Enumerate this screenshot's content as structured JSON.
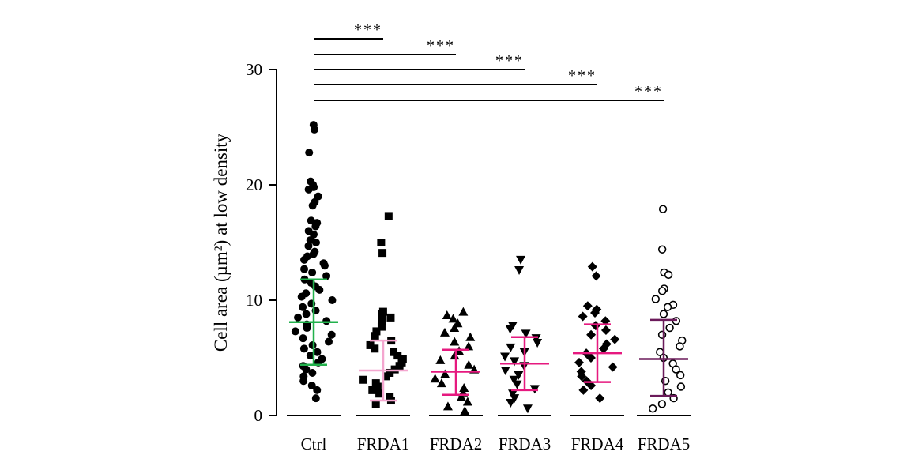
{
  "chart_data": {
    "type": "scatter",
    "title": "",
    "xlabel": "",
    "ylabel": "Cell area (µm²) at low density",
    "ylim": [
      0,
      30
    ],
    "yticks": [
      0,
      10,
      20,
      30
    ],
    "grid": false,
    "legend": "none",
    "categories": [
      "Ctrl",
      "FRDA1",
      "FRDA2",
      "FRDA3",
      "FRDA4",
      "FRDA5"
    ],
    "groups": [
      {
        "label": "Ctrl",
        "marker": "filled-circle",
        "summary_color": "#22b14c",
        "mean": 8.1,
        "sd_low": 4.4,
        "sd_high": 11.8,
        "values": [
          25.2,
          24.8,
          22.8,
          20.3,
          20.0,
          19.8,
          19.6,
          19.0,
          18.5,
          18.2,
          16.9,
          16.7,
          16.4,
          16.0,
          15.7,
          15.2,
          15.0,
          14.7,
          14.2,
          14.0,
          13.8,
          13.5,
          13.2,
          13.0,
          12.7,
          12.4,
          12.1,
          11.8,
          11.5,
          11.2,
          10.9,
          10.6,
          10.3,
          10.0,
          9.7,
          9.4,
          9.1,
          8.8,
          8.5,
          8.2,
          7.9,
          7.6,
          7.3,
          7.0,
          6.7,
          6.4,
          6.1,
          5.8,
          5.5,
          5.2,
          4.9,
          4.6,
          4.3,
          4.0,
          3.7,
          3.4,
          3.0,
          2.6,
          2.2,
          1.5
        ]
      },
      {
        "label": "FRDA1",
        "marker": "filled-square",
        "summary_color": "#f4a6cf",
        "mean": 3.9,
        "sd_low": 1.3,
        "sd_high": 6.5,
        "values": [
          17.3,
          15.0,
          14.1,
          9.0,
          8.8,
          8.5,
          8.2,
          7.7,
          7.3,
          6.9,
          6.5,
          6.1,
          5.8,
          5.5,
          5.2,
          4.9,
          4.6,
          4.3,
          4.0,
          3.7,
          3.4,
          3.1,
          2.8,
          2.5,
          2.2,
          1.9,
          1.6,
          1.3,
          1.0
        ]
      },
      {
        "label": "FRDA2",
        "marker": "filled-triangle-up",
        "summary_color": "#e6197f",
        "mean": 3.8,
        "sd_low": 1.8,
        "sd_high": 5.7,
        "values": [
          9.0,
          8.7,
          8.4,
          8.0,
          7.6,
          7.2,
          6.8,
          6.4,
          6.0,
          5.6,
          5.2,
          4.8,
          4.4,
          4.0,
          3.6,
          3.2,
          2.8,
          2.4,
          2.0,
          1.6,
          1.2,
          0.8,
          0.4
        ]
      },
      {
        "label": "FRDA3",
        "marker": "filled-triangle-down",
        "summary_color": "#e6197f",
        "mean": 4.5,
        "sd_low": 2.2,
        "sd_high": 6.8,
        "values": [
          13.5,
          12.6,
          7.8,
          7.5,
          7.1,
          6.7,
          6.3,
          5.9,
          5.5,
          5.1,
          4.7,
          4.3,
          3.9,
          3.5,
          3.1,
          2.7,
          2.3,
          1.9,
          1.5,
          1.1,
          0.6
        ]
      },
      {
        "label": "FRDA4",
        "marker": "filled-diamond",
        "summary_color": "#e6197f",
        "mean": 5.4,
        "sd_low": 2.9,
        "sd_high": 7.9,
        "values": [
          12.9,
          12.1,
          9.5,
          9.2,
          8.9,
          8.6,
          8.2,
          7.8,
          7.4,
          7.0,
          6.6,
          6.2,
          5.8,
          5.4,
          5.0,
          4.6,
          4.2,
          3.8,
          3.4,
          3.0,
          2.6,
          2.2,
          1.5
        ]
      },
      {
        "label": "FRDA5",
        "marker": "open-circle",
        "summary_color": "#6b1a5a",
        "mean": 4.9,
        "sd_low": 1.7,
        "sd_high": 8.3,
        "values": [
          17.9,
          14.4,
          12.4,
          12.2,
          11.0,
          10.8,
          10.1,
          9.6,
          9.4,
          8.8,
          8.2,
          7.6,
          7.0,
          6.5,
          6.0,
          5.5,
          5.0,
          4.5,
          4.0,
          3.5,
          3.0,
          2.5,
          2.0,
          1.5,
          1.0,
          0.6
        ]
      }
    ],
    "significance": [
      {
        "from": "Ctrl",
        "to": "FRDA1",
        "label": "***"
      },
      {
        "from": "Ctrl",
        "to": "FRDA2",
        "label": "***"
      },
      {
        "from": "Ctrl",
        "to": "FRDA3",
        "label": "***"
      },
      {
        "from": "Ctrl",
        "to": "FRDA4",
        "label": "***"
      },
      {
        "from": "Ctrl",
        "to": "FRDA5",
        "label": "***"
      }
    ]
  }
}
